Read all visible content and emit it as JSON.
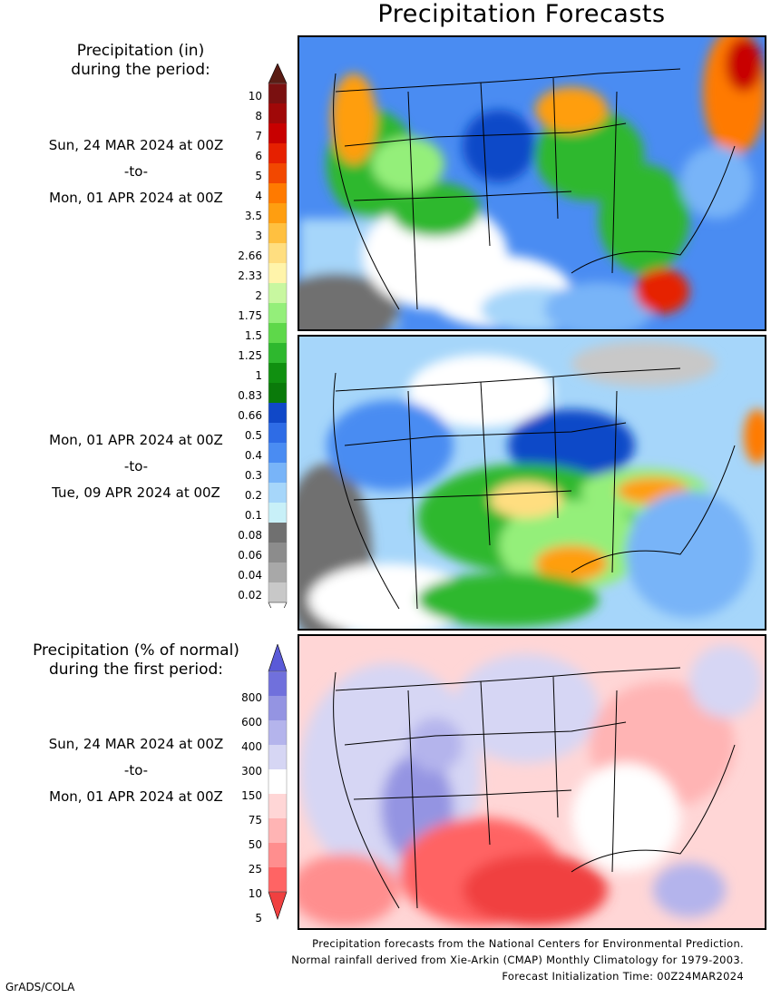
{
  "title": "Precipitation Forecasts",
  "amount_legend": {
    "heading_line1": "Precipitation (in)",
    "heading_line2": "during the period:",
    "labels": [
      "10",
      "8",
      "7",
      "6",
      "5",
      "4",
      "3.5",
      "3",
      "2.66",
      "2.33",
      "2",
      "1.75",
      "1.5",
      "1.25",
      "1",
      "0.83",
      "0.66",
      "0.5",
      "0.4",
      "0.3",
      "0.2",
      "0.1",
      "0.08",
      "0.06",
      "0.04",
      "0.02"
    ],
    "colors": [
      "#5a1c14",
      "#7a1010",
      "#a00808",
      "#c80000",
      "#e62000",
      "#f24800",
      "#ff7a00",
      "#ff9e10",
      "#ffc040",
      "#ffde80",
      "#fff4aa",
      "#c8f7a0",
      "#94ef7a",
      "#5ed84a",
      "#2eb82e",
      "#109010",
      "#0a7a0a",
      "#1048c8",
      "#2e6ce6",
      "#4a8cf2",
      "#78b4f8",
      "#a6d6fa",
      "#c8f0f8",
      "#707070",
      "#8c8c8c",
      "#a8a8a8",
      "#c8c8c8",
      "#ffffff"
    ]
  },
  "period1": {
    "start": "Sun, 24 MAR 2024 at 00Z",
    "sep": "-to-",
    "end": "Mon, 01 APR 2024 at 00Z"
  },
  "period2": {
    "start": "Mon, 01 APR 2024 at 00Z",
    "sep": "-to-",
    "end": "Tue, 09 APR 2024 at 00Z"
  },
  "percent_legend": {
    "heading_line1": "Precipitation (% of normal)",
    "heading_line2": "during the first period:",
    "labels": [
      "800",
      "600",
      "400",
      "300",
      "150",
      "75",
      "50",
      "25",
      "10",
      "5"
    ],
    "colors": [
      "#5a5ad8",
      "#7070dc",
      "#9494e2",
      "#b4b4ec",
      "#d6d6f4",
      "#ffffff",
      "#ffd6d6",
      "#ffb4b4",
      "#ff8e8e",
      "#ff6464",
      "#f04040"
    ]
  },
  "period3": {
    "start": "Sun, 24 MAR 2024 at 00Z",
    "sep": "-to-",
    "end": "Mon, 01 APR 2024 at 00Z"
  },
  "credits": {
    "line1": "Precipitation forecasts from the National Centers for Environmental Prediction.",
    "line2": "Normal rainfall derived from Xie-Arkin (CMAP) Monthly Climatology for 1979-2003.",
    "line3": "Forecast Initialization Time: 00Z24MAR2024"
  },
  "software": "GrADS/COLA"
}
